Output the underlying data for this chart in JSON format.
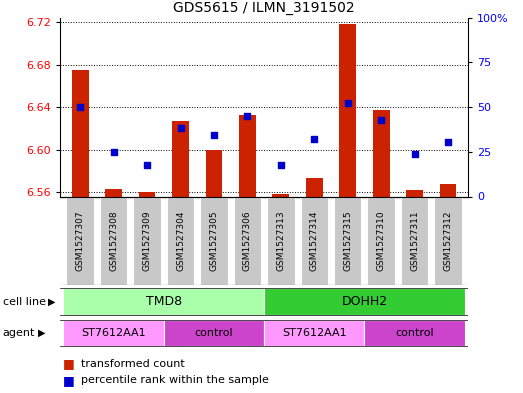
{
  "title": "GDS5615 / ILMN_3191502",
  "samples": [
    "GSM1527307",
    "GSM1527308",
    "GSM1527309",
    "GSM1527304",
    "GSM1527305",
    "GSM1527306",
    "GSM1527313",
    "GSM1527314",
    "GSM1527315",
    "GSM1527310",
    "GSM1527311",
    "GSM1527312"
  ],
  "red_values": [
    6.675,
    6.563,
    6.56,
    6.627,
    6.6,
    6.633,
    6.558,
    6.573,
    6.718,
    6.637,
    6.562,
    6.568
  ],
  "blue_values": [
    6.64,
    6.598,
    6.586,
    6.62,
    6.614,
    6.632,
    6.586,
    6.61,
    6.644,
    6.628,
    6.596,
    6.607
  ],
  "y_min": 6.556,
  "y_max": 6.724,
  "y_ticks": [
    6.56,
    6.6,
    6.64,
    6.68,
    6.72
  ],
  "y_tick_labels": [
    "6.56",
    "6.60",
    "6.64",
    "6.68",
    "6.72"
  ],
  "right_y_ticks": [
    0,
    25,
    50,
    75,
    100
  ],
  "right_y_tick_labels": [
    "0",
    "25",
    "50",
    "75",
    "100%"
  ],
  "cell_line_groups": [
    {
      "label": "TMD8",
      "start": 0,
      "end": 5,
      "color": "#AAFFAA"
    },
    {
      "label": "DOHH2",
      "start": 6,
      "end": 11,
      "color": "#33CC33"
    }
  ],
  "agent_groups": [
    {
      "label": "ST7612AA1",
      "start": 0,
      "end": 2,
      "color": "#FF99FF"
    },
    {
      "label": "control",
      "start": 3,
      "end": 5,
      "color": "#CC44CC"
    },
    {
      "label": "ST7612AA1",
      "start": 6,
      "end": 8,
      "color": "#FF99FF"
    },
    {
      "label": "control",
      "start": 9,
      "end": 11,
      "color": "#CC44CC"
    }
  ],
  "bar_color": "#CC2200",
  "dot_color": "#0000CC",
  "bar_baseline": 6.556,
  "bar_width": 0.5,
  "sample_box_color": "#C8C8C8",
  "grid_linestyle": "dotted",
  "grid_linewidth": 0.7
}
